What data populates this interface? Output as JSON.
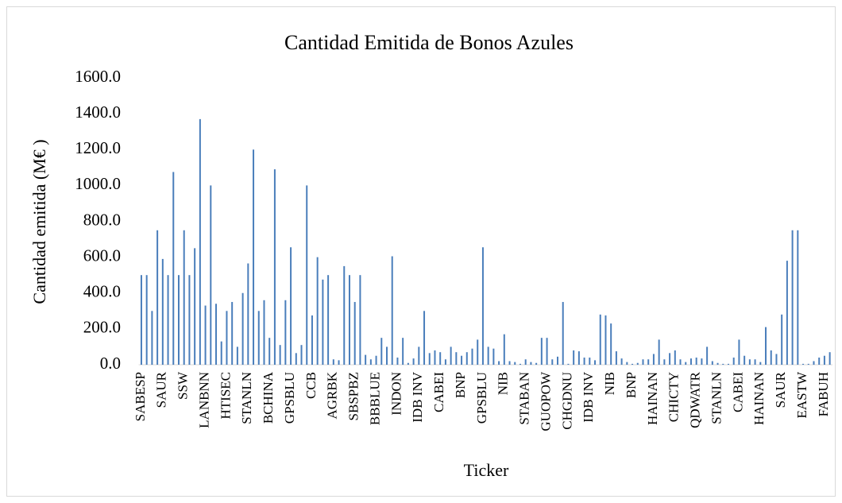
{
  "chart_data": {
    "type": "bar",
    "title": "Cantidad Emitida de Bonos Azules",
    "x_label": "Ticker",
    "y_label": "Cantidad emitida (M€ )",
    "color": "#4a7ebb",
    "ylim": [
      0,
      1600
    ],
    "yticks": [
      {
        "value": 0,
        "label": "0.0"
      },
      {
        "value": 200,
        "label": "200.0"
      },
      {
        "value": 400,
        "label": "400.0"
      },
      {
        "value": 600,
        "label": "600.0"
      },
      {
        "value": 800,
        "label": "800.0"
      },
      {
        "value": 1000,
        "label": "1000.0"
      },
      {
        "value": 1200,
        "label": "1200.0"
      },
      {
        "value": 1400,
        "label": "1400.0"
      },
      {
        "value": 1600,
        "label": "1600.0"
      }
    ],
    "categories": [
      "SABESP",
      null,
      null,
      null,
      "SAUR",
      null,
      null,
      null,
      "SSW",
      null,
      null,
      null,
      "LANBNN",
      null,
      null,
      null,
      "HTISEC",
      null,
      null,
      null,
      "STANLN",
      null,
      null,
      null,
      "BCHINA",
      null,
      null,
      null,
      "GPSBLU",
      null,
      null,
      null,
      "CCB",
      null,
      null,
      null,
      "AGRBK",
      null,
      null,
      null,
      "SBSPBZ",
      null,
      null,
      null,
      "BBBLUE",
      null,
      null,
      null,
      "INDON",
      null,
      null,
      null,
      "IDB INV",
      null,
      null,
      null,
      "CABEI",
      null,
      null,
      null,
      "BNP",
      null,
      null,
      null,
      "GPSBLU",
      null,
      null,
      null,
      "NIB",
      null,
      null,
      null,
      "STABAN",
      null,
      null,
      null,
      "GUOPOW",
      null,
      null,
      null,
      "CHGDNU",
      null,
      null,
      null,
      "IDB INV",
      null,
      null,
      null,
      "NIB",
      null,
      null,
      null,
      "BNP",
      null,
      null,
      null,
      "HAINAN",
      null,
      null,
      null,
      "CHICTY",
      null,
      null,
      null,
      "QDWATR",
      null,
      null,
      null,
      "STANLN",
      null,
      null,
      null,
      "CABEI",
      null,
      null,
      null,
      "HAINAN",
      null,
      null,
      null,
      "SAUR",
      null,
      null,
      null,
      "EASTW",
      null,
      null,
      null,
      "FABUH",
      null
    ],
    "values": [
      500,
      500,
      300,
      750,
      590,
      500,
      1075,
      500,
      750,
      500,
      650,
      1370,
      330,
      1000,
      340,
      130,
      300,
      350,
      100,
      400,
      565,
      1200,
      300,
      360,
      150,
      1090,
      110,
      360,
      655,
      65,
      110,
      1000,
      275,
      600,
      475,
      500,
      30,
      25,
      550,
      500,
      350,
      500,
      55,
      30,
      50,
      150,
      100,
      605,
      40,
      150,
      10,
      35,
      100,
      300,
      65,
      80,
      70,
      30,
      100,
      70,
      50,
      70,
      90,
      140,
      655,
      100,
      90,
      20,
      170,
      20,
      15,
      5,
      30,
      15,
      10,
      150,
      150,
      30,
      45,
      350,
      5,
      80,
      75,
      40,
      40,
      25,
      280,
      275,
      230,
      75,
      35,
      15,
      5,
      10,
      30,
      30,
      60,
      140,
      30,
      65,
      80,
      30,
      15,
      35,
      40,
      35,
      100,
      20,
      10,
      5,
      5,
      40,
      140,
      50,
      30,
      30,
      15,
      210,
      80,
      60,
      280,
      580,
      750,
      750,
      5,
      5,
      20,
      40,
      50,
      70
    ]
  }
}
